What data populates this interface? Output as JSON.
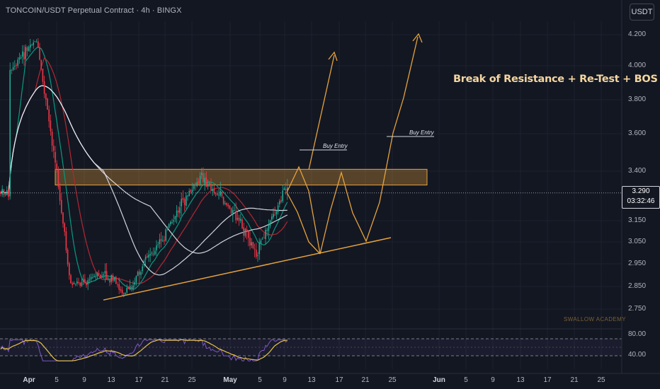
{
  "header": {
    "title": "TONCOIN/USDT Perpetual Contract · 4h · BINGX"
  },
  "currency_button": "USDT",
  "price_axis": {
    "ticks": [
      "4.200",
      "4.000",
      "3.800",
      "3.600",
      "3.400",
      "3.150",
      "3.050",
      "2.950",
      "2.850",
      "2.750"
    ]
  },
  "current_price": {
    "price": "3.290",
    "countdown": "03:32:46"
  },
  "time_axis": {
    "ticks": [
      {
        "label": "Apr",
        "major": true
      },
      {
        "label": "5",
        "major": false
      },
      {
        "label": "9",
        "major": false
      },
      {
        "label": "13",
        "major": false
      },
      {
        "label": "17",
        "major": false
      },
      {
        "label": "21",
        "major": false
      },
      {
        "label": "25",
        "major": false
      },
      {
        "label": "May",
        "major": true
      },
      {
        "label": "5",
        "major": false
      },
      {
        "label": "9",
        "major": false
      },
      {
        "label": "13",
        "major": false
      },
      {
        "label": "17",
        "major": false
      },
      {
        "label": "21",
        "major": false
      },
      {
        "label": "25",
        "major": false
      },
      {
        "label": "Jun",
        "major": true
      },
      {
        "label": "5",
        "major": false
      },
      {
        "label": "9",
        "major": false
      },
      {
        "label": "13",
        "major": false
      },
      {
        "label": "17",
        "major": false
      },
      {
        "label": "21",
        "major": false
      },
      {
        "label": "25",
        "major": false
      }
    ]
  },
  "annotations": {
    "main_text": "Break of Resistance + Re-Test + BOS",
    "entry_1": "Buy Entry",
    "entry_2": "Buy Entry"
  },
  "watermark": "SWALLOW ACADEMY",
  "rsi_axis": {
    "ticks": [
      "80.00",
      "40.00"
    ]
  },
  "colors": {
    "background": "#131722",
    "bull": "#22ab94",
    "bear": "#f23645",
    "projection": "#e6a23c",
    "resistance_zone": "#e6a23c",
    "rsi_line": "#7e57c2",
    "rsi_ma": "#e6c34a"
  },
  "chart_data": {
    "type": "candlestick",
    "symbol": "TONCOIN/USDT",
    "timeframe": "4h",
    "price_range": [
      2.72,
      4.25
    ],
    "price_path_approx": [
      {
        "date": "Mar 29",
        "price": 3.95
      },
      {
        "date": "Apr 2",
        "price": 4.18
      },
      {
        "date": "Apr 5",
        "price": 3.4
      },
      {
        "date": "Apr 7",
        "price": 2.86
      },
      {
        "date": "Apr 12",
        "price": 2.9
      },
      {
        "date": "Apr 15",
        "price": 2.82
      },
      {
        "date": "Apr 20",
        "price": 3.05
      },
      {
        "date": "Apr 24",
        "price": 3.28
      },
      {
        "date": "Apr 26",
        "price": 3.37
      },
      {
        "date": "Apr 30",
        "price": 3.22
      },
      {
        "date": "May 5",
        "price": 3.0
      },
      {
        "date": "May 9",
        "price": 3.29
      }
    ],
    "resistance_zone": {
      "low": 3.33,
      "high": 3.41
    },
    "trendline": [
      {
        "date": "Apr 12",
        "price": 2.79
      },
      {
        "date": "May 24",
        "price": 3.07
      }
    ],
    "projection_path": [
      {
        "date": "May 9",
        "price": 3.29
      },
      {
        "date": "May 11",
        "price": 3.51
      },
      {
        "date": "May 13",
        "price": 3.3
      },
      {
        "date": "May 15",
        "price": 3.0
      },
      {
        "date": "May 19",
        "price": 3.4
      },
      {
        "date": "May 21",
        "price": 3.05
      },
      {
        "date": "May 25",
        "price": 3.57
      },
      {
        "date": "May 28",
        "price": 4.2
      }
    ],
    "current_price": 3.29,
    "rsi_range": [
      20,
      90
    ],
    "rsi_levels": [
      80,
      40
    ]
  }
}
